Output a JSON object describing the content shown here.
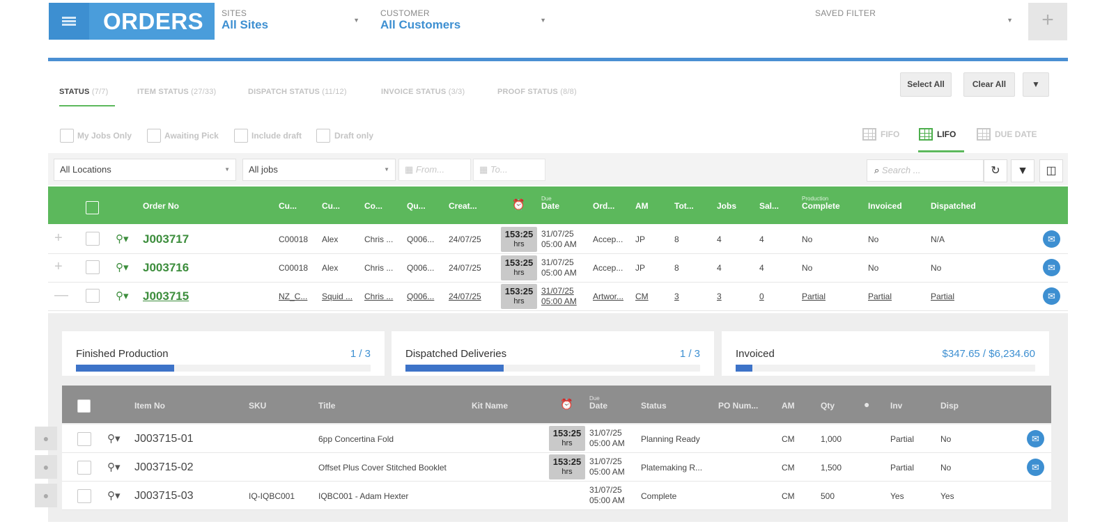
{
  "header": {
    "title": "ORDERS",
    "sites_label": "SITES",
    "sites_value": "All Sites",
    "customer_label": "CUSTOMER",
    "customer_value": "All Customers",
    "saved_filter_label": "SAVED FILTER",
    "plus": "+"
  },
  "tabs": [
    {
      "label": "STATUS",
      "count": "(7/7)"
    },
    {
      "label": "ITEM STATUS",
      "count": "(27/33)"
    },
    {
      "label": "DISPATCH STATUS",
      "count": "(11/12)"
    },
    {
      "label": "INVOICE STATUS",
      "count": "(3/3)"
    },
    {
      "label": "PROOF STATUS",
      "count": "(8/8)"
    }
  ],
  "actions": {
    "select_all": "Select All",
    "clear_all": "Clear All"
  },
  "checks": [
    "My Jobs Only",
    "Awaiting Pick",
    "Include draft",
    "Draft only"
  ],
  "sort": [
    "FIFO",
    "LIFO",
    "DUE DATE"
  ],
  "filters": {
    "location": "All Locations",
    "jobs": "All jobs",
    "from": "From...",
    "to": "To...",
    "search_placeholder": "Search ..."
  },
  "order_columns": {
    "order_no": "Order No",
    "cu1": "Cu...",
    "cu2": "Cu...",
    "co": "Co...",
    "qu": "Qu...",
    "created": "Creat...",
    "due_small": "Due",
    "due": "Date",
    "ord": "Ord...",
    "am": "AM",
    "tot": "Tot...",
    "jobs": "Jobs",
    "sal": "Sal...",
    "prod_small": "Production",
    "complete": "Complete",
    "invoiced": "Invoiced",
    "dispatched": "Dispatched"
  },
  "orders": [
    {
      "side": "+",
      "no": "J003717",
      "cu1": "C00018",
      "cu2": "Alex",
      "co": "Chris ...",
      "qu": "Q006...",
      "created": "24/07/25",
      "time": "153:25",
      "hrs": "hrs",
      "due1": "31/07/25",
      "due2": "05:00 AM",
      "ord": "Accep...",
      "am": "JP",
      "tot": "8",
      "jobs": "4",
      "sal": "4",
      "complete": "No",
      "invoiced": "No",
      "dispatched": "N/A"
    },
    {
      "side": "+",
      "no": "J003716",
      "cu1": "C00018",
      "cu2": "Alex",
      "co": "Chris ...",
      "qu": "Q006...",
      "created": "24/07/25",
      "time": "153:25",
      "hrs": "hrs",
      "due1": "31/07/25",
      "due2": "05:00 AM",
      "ord": "Accep...",
      "am": "JP",
      "tot": "8",
      "jobs": "4",
      "sal": "4",
      "complete": "No",
      "invoiced": "No",
      "dispatched": "No"
    },
    {
      "side": "—",
      "no": "J003715",
      "cu1": "NZ_C...",
      "cu2": "Squid ...",
      "co": "Chris ...",
      "qu": "Q006...",
      "created": "24/07/25",
      "time": "153:25",
      "hrs": "hrs",
      "due1": "31/07/25",
      "due2": "05:00 AM",
      "ord": "Artwor...",
      "am": "CM",
      "tot": "3",
      "jobs": "3",
      "sal": "0",
      "complete": "Partial",
      "invoiced": "Partial",
      "dispatched": "Partial"
    }
  ],
  "progress": [
    {
      "label": "Finished Production",
      "value": "1 / 3",
      "fraction": 0.333
    },
    {
      "label": "Dispatched Deliveries",
      "value": "1 / 3",
      "fraction": 0.333
    },
    {
      "label": "Invoiced",
      "value": "$347.65 / $6,234.60",
      "fraction": 0.056
    }
  ],
  "item_columns": {
    "item_no": "Item No",
    "sku": "SKU",
    "title": "Title",
    "kit": "Kit Name",
    "due_small": "Due",
    "due": "Date",
    "status": "Status",
    "po": "PO Num...",
    "am": "AM",
    "qty": "Qty",
    "inv": "Inv",
    "disp": "Disp"
  },
  "items": [
    {
      "no": "J003715-01",
      "sku": "",
      "title": "6pp Concertina Fold",
      "time": "153:25",
      "hrs": "hrs",
      "due1": "31/07/25",
      "due2": "05:00 AM",
      "status": "Planning Ready",
      "am": "CM",
      "qty": "1,000",
      "inv": "Partial",
      "disp": "No",
      "mail": true
    },
    {
      "no": "J003715-02",
      "sku": "",
      "title": "Offset Plus Cover Stitched Booklet",
      "time": "153:25",
      "hrs": "hrs",
      "due1": "31/07/25",
      "due2": "05:00 AM",
      "status": "Platemaking R...",
      "am": "CM",
      "qty": "1,500",
      "inv": "Partial",
      "disp": "No",
      "mail": true
    },
    {
      "no": "J003715-03",
      "sku": "IQ-IQBC001",
      "title": "IQBC001 - Adam Hexter",
      "time": "",
      "hrs": "",
      "due1": "31/07/25",
      "due2": "05:00 AM",
      "status": "Complete",
      "am": "CM",
      "qty": "500",
      "inv": "Yes",
      "disp": "Yes",
      "mail": false
    }
  ],
  "colors": {
    "accent": "#4a9ddb",
    "green": "#5cb85c",
    "progress": "#3d73c8"
  }
}
